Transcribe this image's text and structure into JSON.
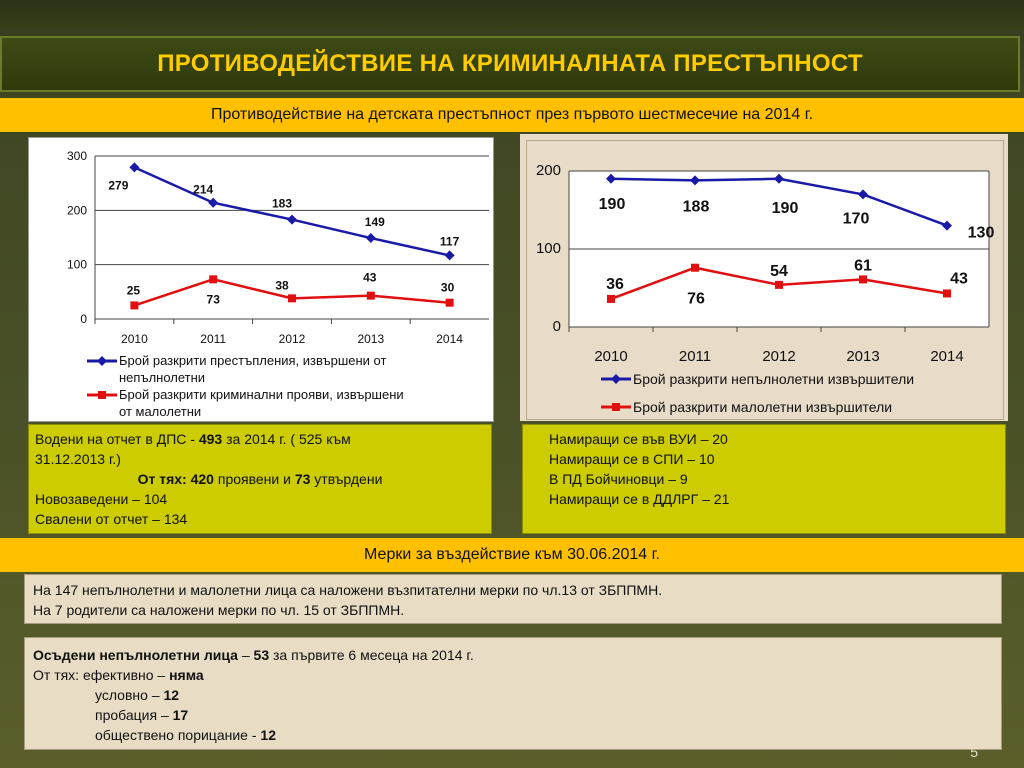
{
  "header": {
    "title": "ПРОТИВОДЕЙСТВИЕ НА КРИМИНАЛНАТА ПРЕСТЪПНОСТ",
    "subtitle": "Противодействие на детската престъпност през първото шестмесечие на 2014 г."
  },
  "colors": {
    "accent": "#ffc000",
    "title_text": "#ffcc00",
    "series_blue": "#1a1aa8",
    "series_red": "#e01010",
    "info_box": "#cccc00",
    "beige": "#e8dcc4"
  },
  "chart_data": [
    {
      "type": "line",
      "categories": [
        "2010",
        "2011",
        "2012",
        "2013",
        "2014"
      ],
      "ylim": [
        0,
        300
      ],
      "yticks": [
        "0",
        "100",
        "200",
        "300"
      ],
      "grid": true,
      "legend_position": "bottom",
      "series": [
        {
          "name": "Брой разкрити престъпления, извършени от непълнолетни",
          "values": [
            279,
            214,
            183,
            149,
            117
          ],
          "labels": [
            "279",
            "214",
            "183",
            "149",
            "117"
          ]
        },
        {
          "name": "Брой разкрити криминални прояви, извършени от малолетни",
          "values": [
            25,
            73,
            38,
            43,
            30
          ],
          "labels": [
            "25",
            "73",
            "38",
            "43",
            "30"
          ]
        }
      ]
    },
    {
      "type": "line",
      "categories": [
        "2010",
        "2011",
        "2012",
        "2013",
        "2014"
      ],
      "ylim": [
        0,
        200
      ],
      "yticks": [
        "0",
        "100",
        "200"
      ],
      "grid": true,
      "legend_position": "bottom",
      "series": [
        {
          "name": "Брой разкрити непълнолетни извършители",
          "values": [
            190,
            188,
            190,
            170,
            130
          ],
          "labels": [
            "190",
            "188",
            "190",
            "170",
            "130"
          ]
        },
        {
          "name": "Брой разкрити малолетни извършители",
          "values": [
            36,
            76,
            54,
            61,
            43
          ],
          "labels": [
            "36",
            "76",
            "54",
            "61",
            "43"
          ]
        }
      ]
    }
  ],
  "chart1_legend": {
    "s1_line1": "Брой разкрити престъпления,  извършени  от",
    "s1_line2": "непълнолетни",
    "s2_line1": "Брой разкрити криминални прояви, извършени",
    "s2_line2": "от малолетни"
  },
  "info_left": {
    "line1_a": "Водени на отчет в ДПС  - ",
    "line1_b": "493",
    "line1_c": " за 2014 г. ( 525 към",
    "line2": "31.12.2013 г.)",
    "line3_a": "От тях: 420",
    "line3_b": " проявени и ",
    "line3_c": "73",
    "line3_d": " утвърдени",
    "line4": "Новозаведени – 104",
    "line5": "Свалени от отчет – 134"
  },
  "info_right": {
    "line1": "Намиращи се във ВУИ – 20",
    "line2": "Намиращи се  в СПИ –  10",
    "line3": "В ПД Бойчиновци –  9",
    "line4": "Намиращи се в ДДЛРГ – 21"
  },
  "measures": {
    "title": "Мерки за въздействие към 30.06.2014 г.",
    "line1": "На 147 непълнолетни и малолетни  лица са наложени възпитателни мерки по чл.13 от ЗБППМН.",
    "line2": "На 7 родители са наложени мерки по чл. 15 от ЗБППМН."
  },
  "convicted": {
    "line1_a": "Осъдени непълнолетни лица",
    "line1_b": " – ",
    "line1_c": "53",
    "line1_d": " за първите 6 месеца на 2014 г.",
    "line2_a": "От тях: ефективно – ",
    "line2_b": "няма",
    "line3_a": "условно – ",
    "line3_b": "12",
    "line4_a": "пробация – ",
    "line4_b": "17",
    "line5_a": "обществено порицание - ",
    "line5_b": "12"
  },
  "page_number": "5"
}
